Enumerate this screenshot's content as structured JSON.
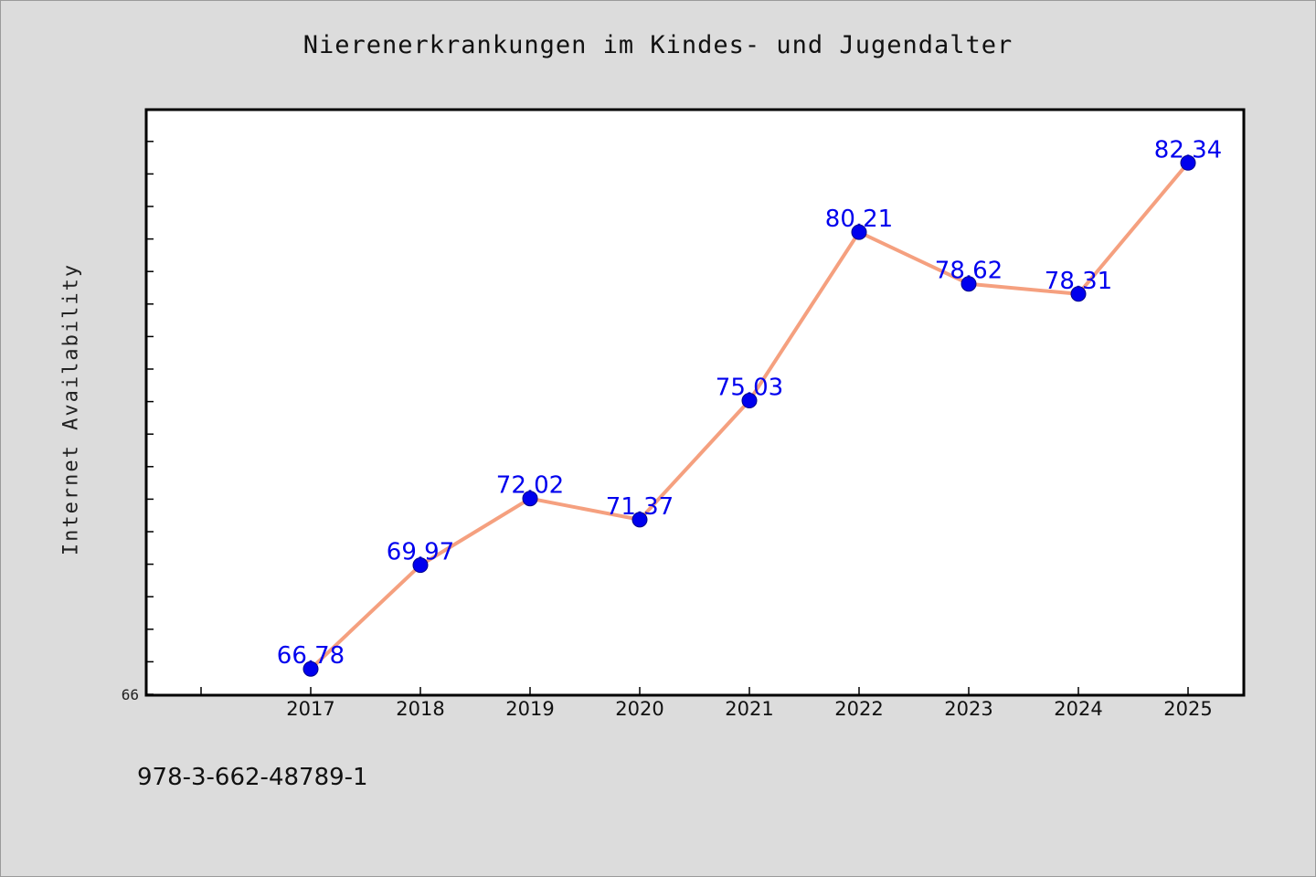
{
  "chart_data": {
    "type": "line",
    "title": "Nierenerkrankungen im Kindes- und Jugendalter",
    "xlabel": "",
    "ylabel": "Internet Availability",
    "categories": [
      "2017",
      "2018",
      "2019",
      "2020",
      "2021",
      "2022",
      "2023",
      "2024",
      "2025"
    ],
    "series": [
      {
        "values": [
          66.78,
          69.97,
          72.02,
          71.37,
          75.03,
          80.21,
          78.62,
          78.31,
          82.34
        ],
        "labels": [
          "66.78",
          "69.97",
          "72.02",
          "71.37",
          "75.03",
          "80.21",
          "78.62",
          "78.31",
          "82.34"
        ],
        "line_color": "#f5a07f",
        "marker_color": "#0000ee",
        "label_color": "#0000ee"
      }
    ],
    "ylim": [
      66,
      84
    ],
    "y_tick_labels": [
      "66"
    ],
    "grid": false,
    "legend": false
  },
  "footer": {
    "isbn": "978-3-662-48789-1"
  }
}
